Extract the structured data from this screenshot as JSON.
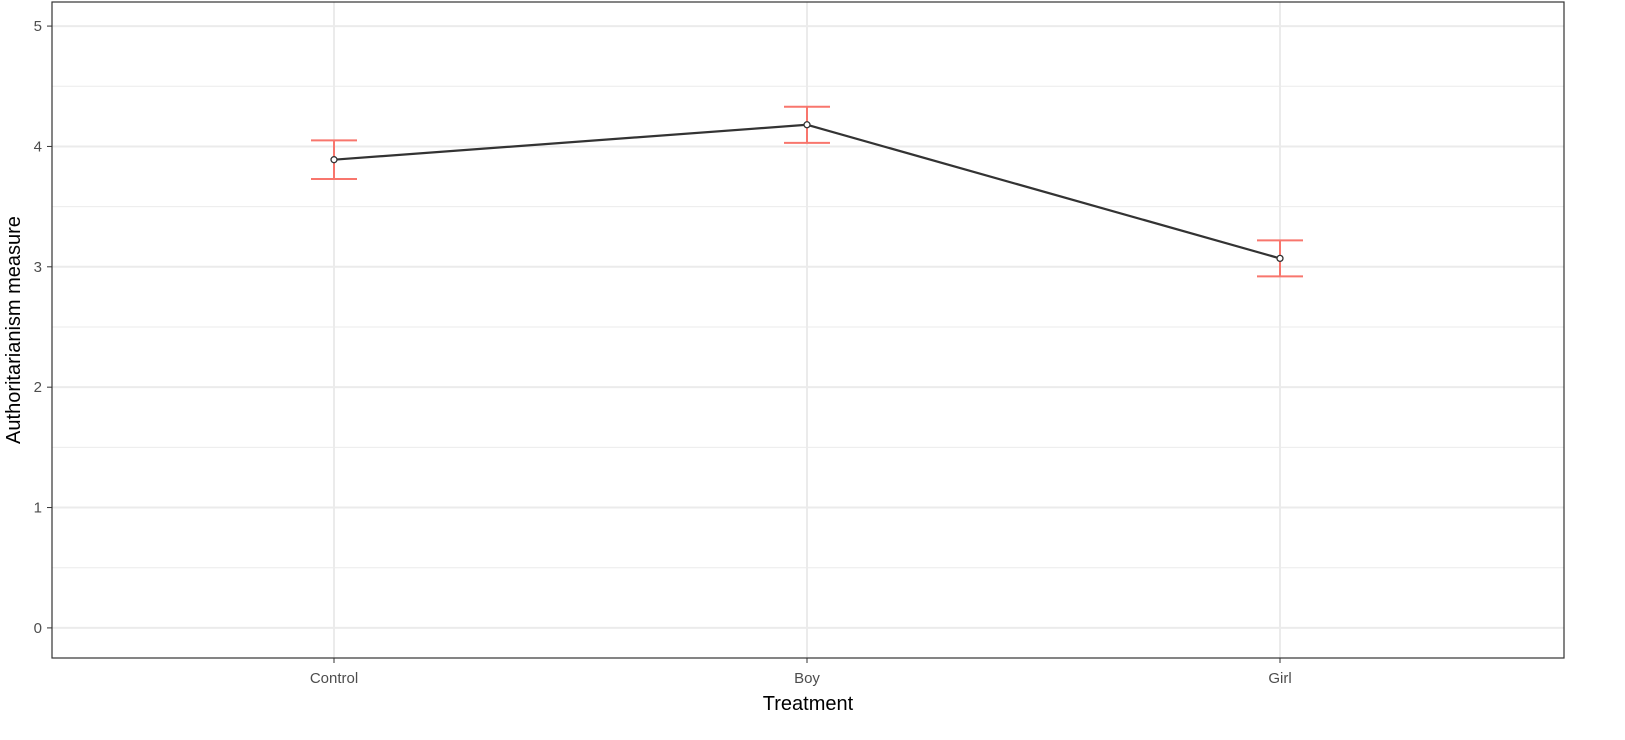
{
  "chart_data": {
    "type": "line",
    "title": "",
    "xlabel": "Treatment",
    "ylabel": "Authoritarianism measure",
    "categories": [
      "Control",
      "Boy",
      "Girl"
    ],
    "series": [
      {
        "values": [
          3.89,
          4.18,
          3.07
        ],
        "error_low": [
          3.73,
          4.03,
          2.92
        ],
        "error_high": [
          4.05,
          4.33,
          3.22
        ]
      }
    ],
    "y_ticks": [
      "0",
      "1",
      "2",
      "3",
      "4",
      "5"
    ],
    "ylim": [
      -0.25,
      5.2
    ],
    "grid": true,
    "legend": "none"
  },
  "colors": {
    "line": "#333333",
    "errorbar": "#f8766d",
    "grid": "#ebebeb",
    "panel_border": "#333333",
    "point_fill": "#ffffff"
  }
}
